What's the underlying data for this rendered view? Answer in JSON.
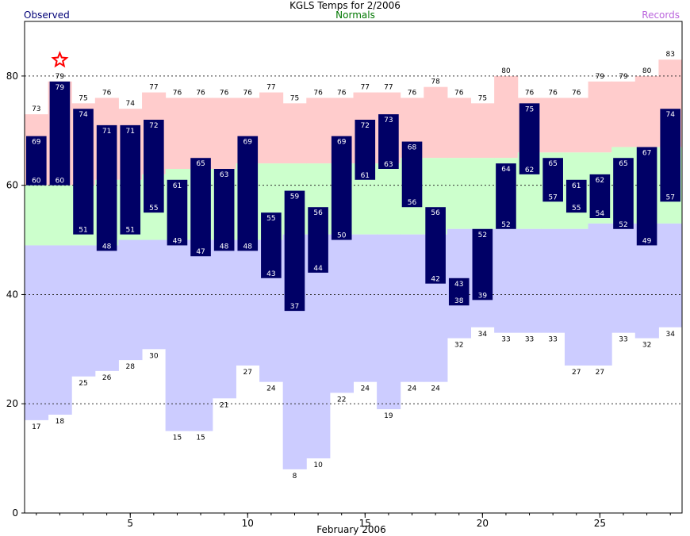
{
  "chart_data": {
    "type": "climate-bar",
    "title": "KGLS Temps for 2/2006",
    "legend": {
      "observed": "Observed",
      "normals": "Normals",
      "records": "Records"
    },
    "xlabel": "February 2006",
    "xticks": [
      5,
      10,
      15,
      20,
      25
    ],
    "yticks": [
      0,
      20,
      40,
      60,
      80
    ],
    "xlim": [
      0.5,
      28.5
    ],
    "ylim": [
      0,
      90
    ],
    "gridlines": [
      20,
      40,
      60,
      80
    ],
    "colors": {
      "observed": "#000066",
      "normal_band": "#ccffcc",
      "record_high_band": "#ffcccc",
      "record_low_band": "#ccccff",
      "record_star": "#ff0000",
      "observed_legend": "#000077",
      "normals_legend": "#007700",
      "records_legend": "#bb66dd"
    },
    "days": [
      1,
      2,
      3,
      4,
      5,
      6,
      7,
      8,
      9,
      10,
      11,
      12,
      13,
      14,
      15,
      16,
      17,
      18,
      19,
      20,
      21,
      22,
      23,
      24,
      25,
      26,
      27,
      28
    ],
    "observed_high": [
      69,
      79,
      74,
      71,
      71,
      72,
      61,
      65,
      63,
      69,
      55,
      59,
      56,
      69,
      72,
      73,
      68,
      56,
      43,
      52,
      64,
      75,
      65,
      61,
      62,
      65,
      67,
      74
    ],
    "observed_low": [
      60,
      60,
      51,
      48,
      51,
      55,
      49,
      47,
      48,
      48,
      43,
      37,
      44,
      50,
      61,
      63,
      56,
      42,
      38,
      39,
      52,
      62,
      57,
      55,
      54,
      52,
      49,
      57
    ],
    "normal_high": [
      60,
      60,
      60,
      61,
      61,
      62,
      63,
      63,
      63,
      64,
      64,
      64,
      64,
      64,
      64,
      64,
      65,
      65,
      65,
      65,
      65,
      66,
      66,
      66,
      66,
      67,
      67,
      67
    ],
    "normal_low": [
      49,
      49,
      49,
      49,
      50,
      50,
      50,
      50,
      50,
      50,
      50,
      51,
      51,
      51,
      51,
      51,
      51,
      51,
      52,
      52,
      52,
      52,
      52,
      52,
      53,
      53,
      53,
      53
    ],
    "record_high": [
      73,
      79,
      75,
      76,
      74,
      77,
      76,
      76,
      76,
      76,
      77,
      75,
      76,
      76,
      77,
      77,
      76,
      78,
      76,
      75,
      80,
      76,
      76,
      76,
      79,
      79,
      80,
      83
    ],
    "record_low": [
      17,
      18,
      25,
      26,
      28,
      30,
      15,
      15,
      21,
      27,
      24,
      8,
      10,
      22,
      24,
      19,
      24,
      24,
      32,
      34,
      33,
      33,
      33,
      27,
      27,
      33,
      32,
      34
    ],
    "record_set_days": [
      2
    ]
  }
}
